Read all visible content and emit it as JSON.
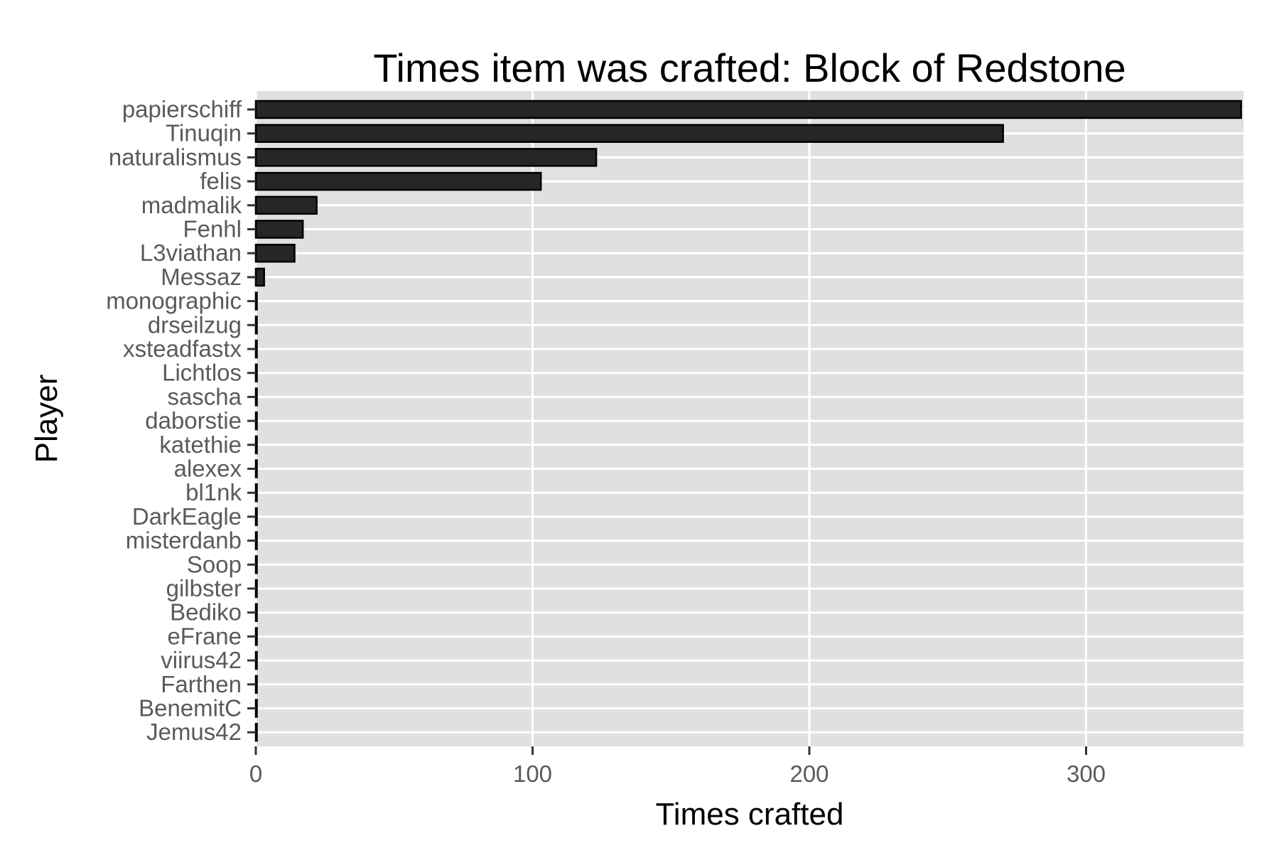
{
  "chart_data": {
    "type": "bar",
    "orientation": "horizontal",
    "title": "Times item was crafted: Block of Redstone",
    "xlabel": "Times crafted",
    "ylabel": "Player",
    "xlim": [
      0,
      357
    ],
    "xticks": [
      0,
      100,
      200,
      300
    ],
    "grid": true,
    "legend": "none",
    "colors": {
      "bar_fill": "#262626",
      "bar_stroke": "#000000",
      "panel": "#e0e0e0",
      "grid": "#ffffff"
    },
    "categories": [
      "papierschiff",
      "Tinuqin",
      "naturalismus",
      "felis",
      "madmalik",
      "Fenhl",
      "L3viathan",
      "Messaz",
      "monographic",
      "drseilzug",
      "xsteadfastx",
      "Lichtlos",
      "sascha",
      "daborstie",
      "katethie",
      "alexex",
      "bl1nk",
      "DarkEagle",
      "misterdanb",
      "Soop",
      "gilbster",
      "Bediko",
      "eFrane",
      "viirus42",
      "Farthen",
      "BenemitC",
      "Jemus42"
    ],
    "values": [
      356,
      270,
      123,
      103,
      22,
      17,
      14,
      3,
      0,
      0,
      0,
      0,
      0,
      0,
      0,
      0,
      0,
      0,
      0,
      0,
      0,
      0,
      0,
      0,
      0,
      0,
      0
    ]
  }
}
